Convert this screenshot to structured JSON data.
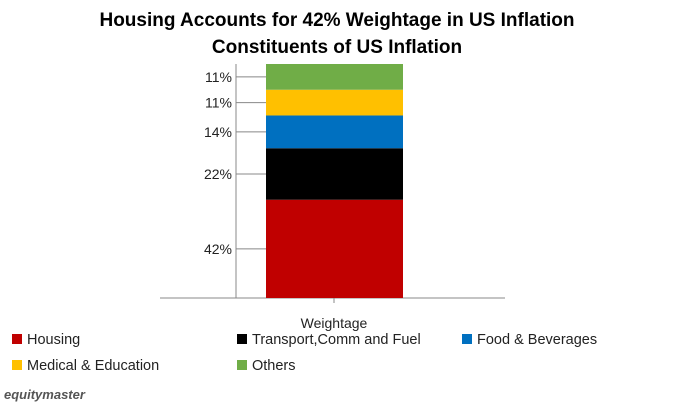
{
  "chart_data": {
    "type": "bar",
    "stacked": true,
    "title": "Housing Accounts for 42% Weightage in US Inflation",
    "subtitle": "Constituents of US Inflation",
    "categories": [
      "Weightage"
    ],
    "series": [
      {
        "name": "Housing",
        "values": [
          42
        ],
        "label": "42%",
        "color": "#c00000"
      },
      {
        "name": "Transport,Comm and Fuel",
        "values": [
          22
        ],
        "label": "22%",
        "color": "#000000"
      },
      {
        "name": "Food & Beverages",
        "values": [
          14
        ],
        "label": "14%",
        "color": "#0070c0"
      },
      {
        "name": "Medical & Education",
        "values": [
          11
        ],
        "label": "11%",
        "color": "#ffc000"
      },
      {
        "name": "Others",
        "values": [
          11
        ],
        "label": "11%",
        "color": "#70ad47"
      }
    ],
    "ylim": [
      0,
      100
    ],
    "grid": false,
    "legend_position": "bottom"
  },
  "brand": {
    "name": "equitymaster"
  }
}
